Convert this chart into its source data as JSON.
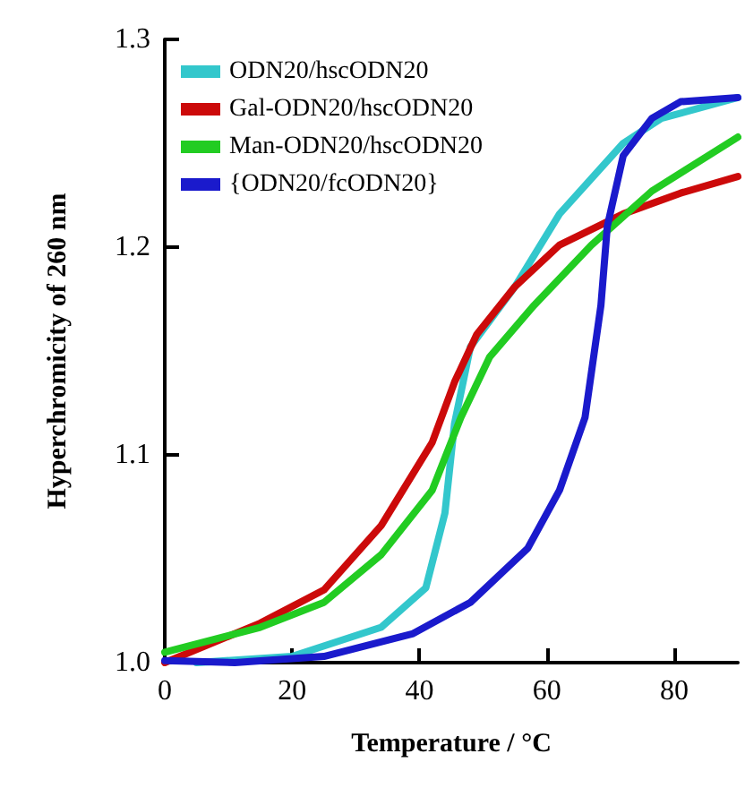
{
  "chart_data": {
    "type": "line",
    "xlabel": "Temperature / °C",
    "ylabel": "Hyperchromicity of 260 nm",
    "xlim": [
      0,
      90
    ],
    "xticks": [
      0,
      20,
      40,
      60,
      80
    ],
    "ylim": [
      1.0,
      1.3
    ],
    "yticks": [
      {
        "value": 1.0,
        "label": "1.0"
      },
      {
        "value": 1.1,
        "label": "1.1"
      },
      {
        "value": 1.2,
        "label": "1.2"
      },
      {
        "value": 1.3,
        "label": "1.3"
      }
    ],
    "grid": false,
    "legend": "top left",
    "marker": "none",
    "line_style": "solid",
    "series": [
      {
        "name": "ODN20/hscODN20",
        "color": "#33c7cc",
        "x": [
          5,
          20,
          34,
          41,
          44,
          45.5,
          48,
          55,
          62,
          72,
          78,
          90
        ],
        "values": [
          1.0,
          1.003,
          1.017,
          1.036,
          1.072,
          1.115,
          1.152,
          1.181,
          1.216,
          1.25,
          1.262,
          1.272
        ]
      },
      {
        "name": "Gal-ODN20/hscODN20",
        "color": "#cc0a0a",
        "x": [
          0,
          15,
          25,
          34,
          42,
          45.5,
          49,
          55,
          62,
          72,
          81,
          90
        ],
        "values": [
          1.0,
          1.019,
          1.035,
          1.066,
          1.106,
          1.135,
          1.158,
          1.181,
          1.201,
          1.216,
          1.226,
          1.234
        ]
      },
      {
        "name": "Man-ODN20/hscODN20",
        "color": "#22cc22",
        "x": [
          0,
          15,
          25,
          34,
          42,
          46.5,
          51,
          58,
          67,
          76.5,
          90
        ],
        "values": [
          1.005,
          1.017,
          1.029,
          1.052,
          1.083,
          1.118,
          1.147,
          1.172,
          1.201,
          1.227,
          1.253
        ]
      },
      {
        "name": "{ODN20/fcODN20}",
        "color": "#1a1acc",
        "x": [
          0,
          11,
          25,
          39,
          48,
          57,
          62,
          66,
          68.5,
          69.5,
          72,
          76.5,
          81,
          90
        ],
        "values": [
          1.001,
          1.0,
          1.003,
          1.014,
          1.029,
          1.055,
          1.083,
          1.118,
          1.172,
          1.21,
          1.244,
          1.262,
          1.27,
          1.272
        ]
      }
    ]
  }
}
